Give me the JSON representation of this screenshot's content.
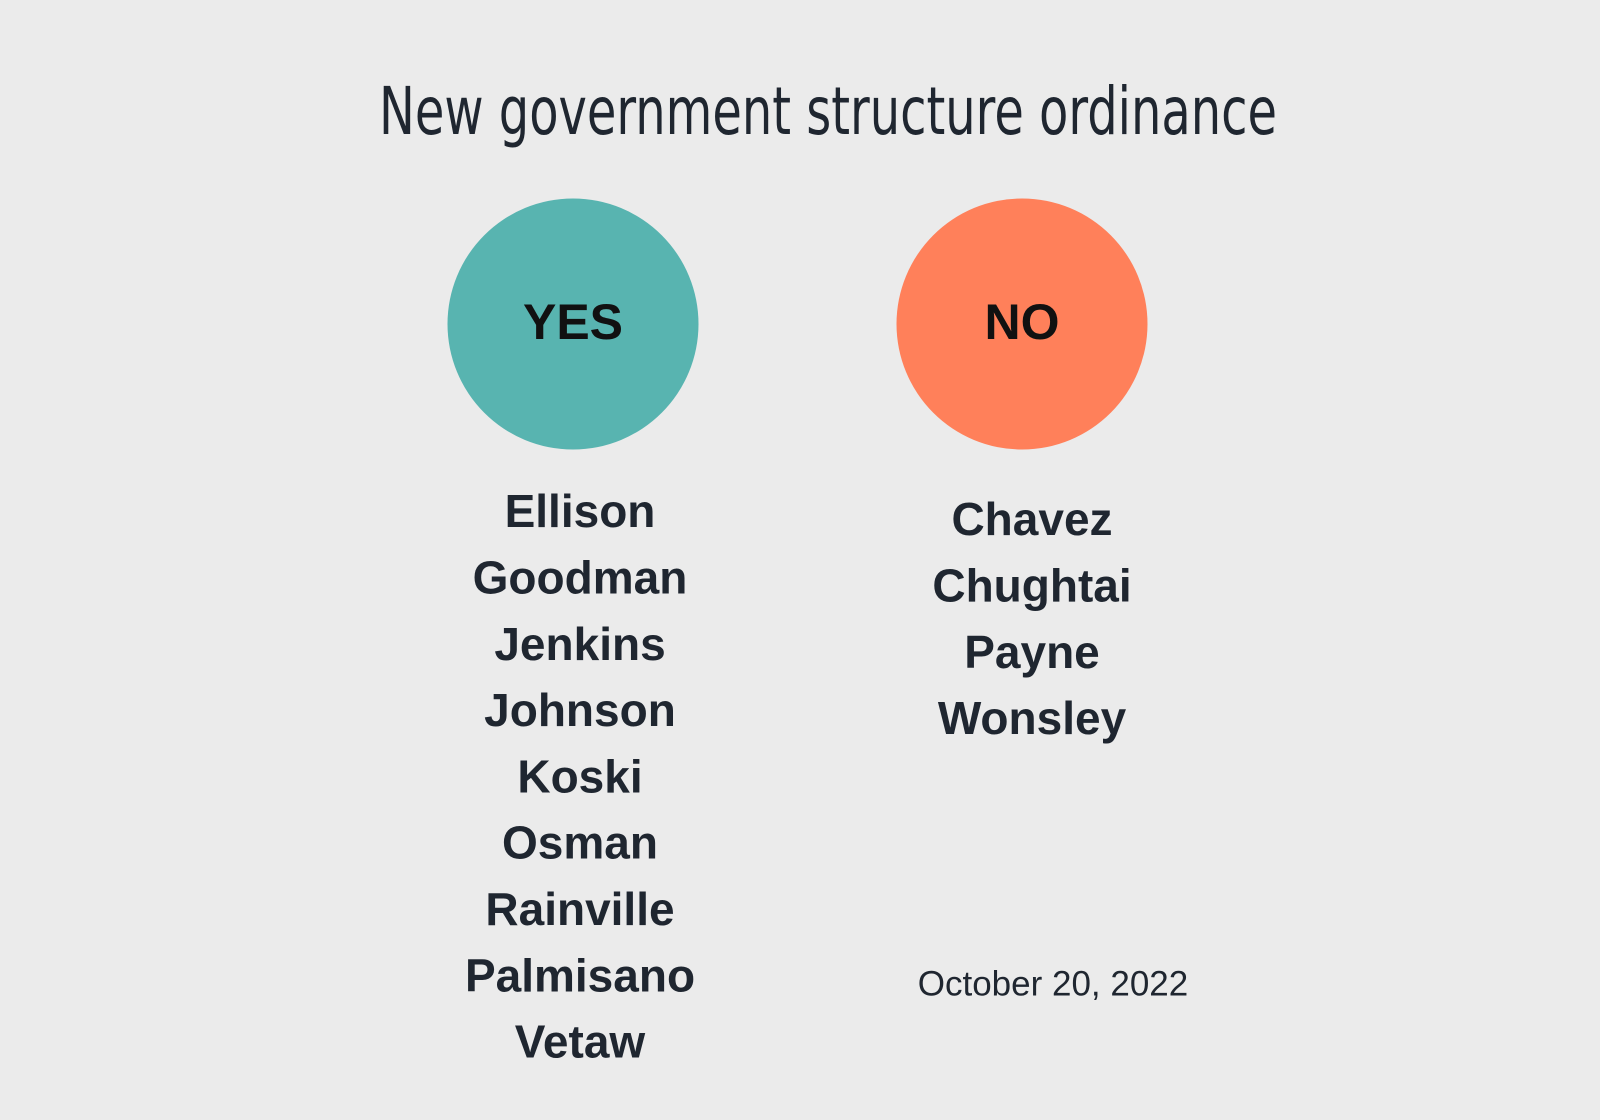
{
  "title": "New government structure ordinance",
  "yes": {
    "label": "YES",
    "names": [
      "Ellison",
      "Goodman",
      "Jenkins",
      "Johnson",
      "Koski",
      "Osman",
      "Rainville",
      "Palmisano",
      "Vetaw"
    ]
  },
  "no": {
    "label": "NO",
    "names": [
      "Chavez",
      "Chughtai",
      "Payne",
      "Wonsley"
    ]
  },
  "date": "October 20, 2022"
}
